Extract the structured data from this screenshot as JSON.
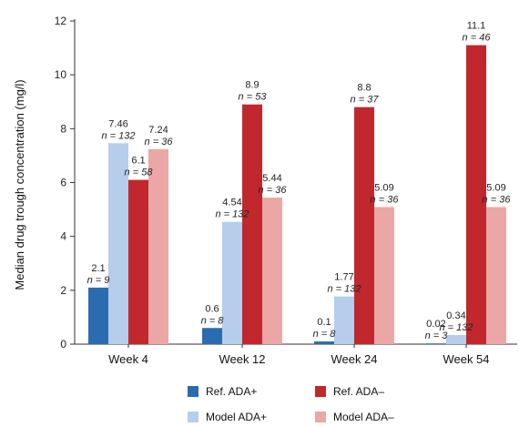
{
  "chart_data": {
    "type": "bar",
    "ylabel": "Median drug trough concentration (mg/l)",
    "ylim": [
      0,
      12
    ],
    "yticks": [
      0,
      2,
      4,
      6,
      8,
      10,
      12
    ],
    "categories": [
      "Week 4",
      "Week 12",
      "Week 24",
      "Week 54"
    ],
    "series": [
      {
        "name": "Ref. ADA+",
        "color": "#2b6cb0",
        "values": [
          2.1,
          0.6,
          0.1,
          0.02
        ],
        "labels": [
          "2.1",
          "0.6",
          "0.1",
          "0.02"
        ],
        "n": [
          "n = 9",
          "n = 8",
          "n = 8",
          "n = 3"
        ]
      },
      {
        "name": "Model ADA+",
        "color": "#b7cdec",
        "values": [
          7.46,
          4.54,
          1.77,
          0.34
        ],
        "labels": [
          "7.46",
          "4.54",
          "1.77",
          "0.34"
        ],
        "n": [
          "n = 132",
          "n = 132",
          "n = 132",
          "n = 132"
        ]
      },
      {
        "name": "Ref. ADA–",
        "color": "#c0282d",
        "values": [
          6.1,
          8.9,
          8.8,
          11.1
        ],
        "labels": [
          "6.1",
          "8.9",
          "8.8",
          "11.1"
        ],
        "n": [
          "n = 58",
          "n = 53",
          "n = 37",
          "n = 46"
        ]
      },
      {
        "name": "Model ADA–",
        "color": "#eaa7a6",
        "values": [
          7.24,
          5.44,
          5.09,
          5.09
        ],
        "labels": [
          "7.24",
          "5.44",
          "5.09",
          "5.09"
        ],
        "n": [
          "n = 36",
          "n = 36",
          "n = 36",
          "n = 36"
        ]
      }
    ],
    "legend": {
      "placement": "bottom",
      "order": [
        "Ref. ADA+",
        "Ref. ADA–",
        "Model ADA+",
        "Model ADA–"
      ]
    },
    "grid": false
  }
}
